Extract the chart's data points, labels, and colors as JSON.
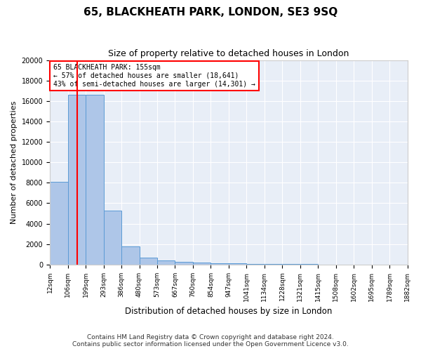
{
  "title": "65, BLACKHEATH PARK, LONDON, SE3 9SQ",
  "subtitle": "Size of property relative to detached houses in London",
  "xlabel": "Distribution of detached houses by size in London",
  "ylabel": "Number of detached properties",
  "annotation_line1": "65 BLACKHEATH PARK: 155sqm",
  "annotation_line2": "← 57% of detached houses are smaller (18,641)",
  "annotation_line3": "43% of semi-detached houses are larger (14,301) →",
  "footer_line1": "Contains HM Land Registry data © Crown copyright and database right 2024.",
  "footer_line2": "Contains public sector information licensed under the Open Government Licence v3.0.",
  "property_size": 155,
  "bar_color": "#aec6e8",
  "bar_edge_color": "#5b9bd5",
  "vline_color": "red",
  "background_color": "#e8eef7",
  "annotation_box_color": "white",
  "annotation_box_edge": "red",
  "ylim": [
    0,
    20000
  ],
  "bin_edges": [
    12,
    106,
    199,
    293,
    386,
    480,
    573,
    667,
    760,
    854,
    947,
    1041,
    1134,
    1228,
    1321,
    1415,
    1508,
    1602,
    1695,
    1789,
    1882
  ],
  "bin_labels": [
    "12sqm",
    "106sqm",
    "199sqm",
    "293sqm",
    "386sqm",
    "480sqm",
    "573sqm",
    "667sqm",
    "760sqm",
    "854sqm",
    "947sqm",
    "1041sqm",
    "1134sqm",
    "1228sqm",
    "1321sqm",
    "1415sqm",
    "1508sqm",
    "1602sqm",
    "1695sqm",
    "1789sqm",
    "1882sqm"
  ],
  "bar_heights": [
    8100,
    16600,
    16600,
    5300,
    1750,
    650,
    380,
    250,
    180,
    130,
    100,
    80,
    60,
    45,
    30,
    20,
    15,
    10,
    7,
    5
  ]
}
